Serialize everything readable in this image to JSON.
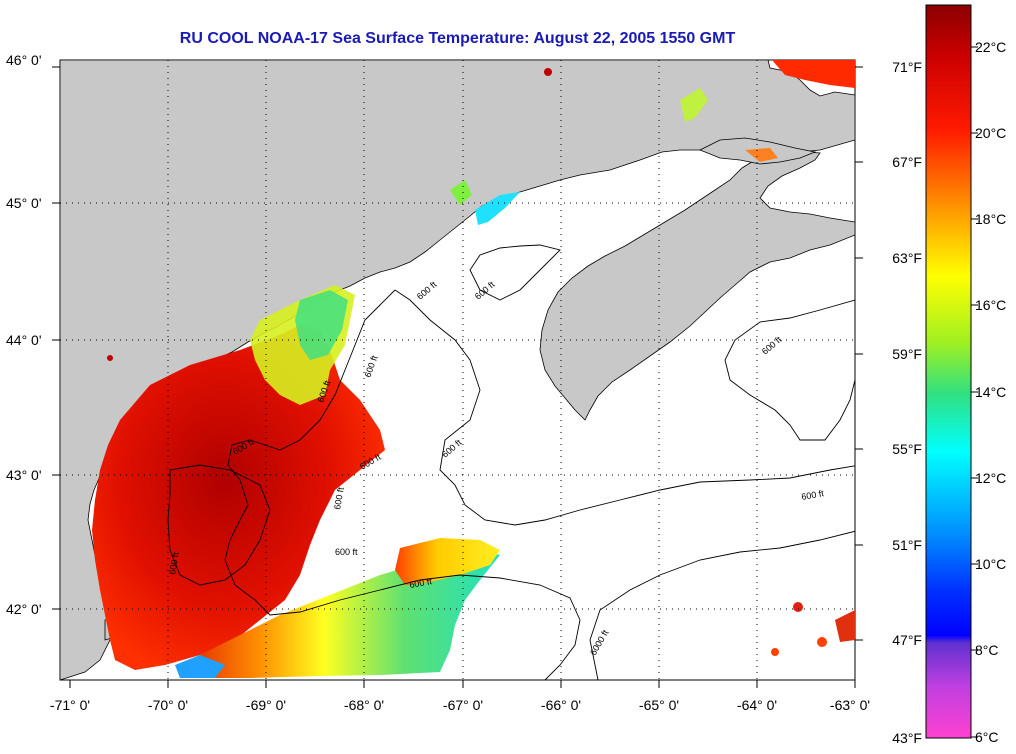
{
  "title": "RU COOL  NOAA-17  Sea Surface Temperature:  August 22, 2005 1550 GMT",
  "lat_labels": [
    "46° 0'",
    "45° 0'",
    "44° 0'",
    "43° 0'",
    "42° 0'"
  ],
  "lon_labels": [
    "-71° 0'",
    "-70° 0'",
    "-69° 0'",
    "-68° 0'",
    "-67° 0'",
    "-66° 0'",
    "-65° 0'",
    "-64° 0'",
    "-63° 0'"
  ],
  "fahrenheit_labels": [
    "71°F",
    "67°F",
    "63°F",
    "59°F",
    "55°F",
    "51°F",
    "47°F",
    "43°F"
  ],
  "celsius_labels": [
    "22°C",
    "20°C",
    "18°C",
    "16°C",
    "14°C",
    "12°C",
    "10°C",
    "8°C",
    "6°C"
  ],
  "contour_labels": [
    "600 ft",
    "600 ft",
    "600 ft",
    "600 ft",
    "600 ft",
    "600 ft",
    "600 ft",
    "600 ft",
    "600 ft",
    "600 ft",
    "600 ft",
    "600 ft",
    "600 ft",
    "6000 ft"
  ],
  "colors": {
    "land": "#c8c8c8",
    "ocean_cloud": "#ffffff",
    "title": "#1a1ab4"
  }
}
